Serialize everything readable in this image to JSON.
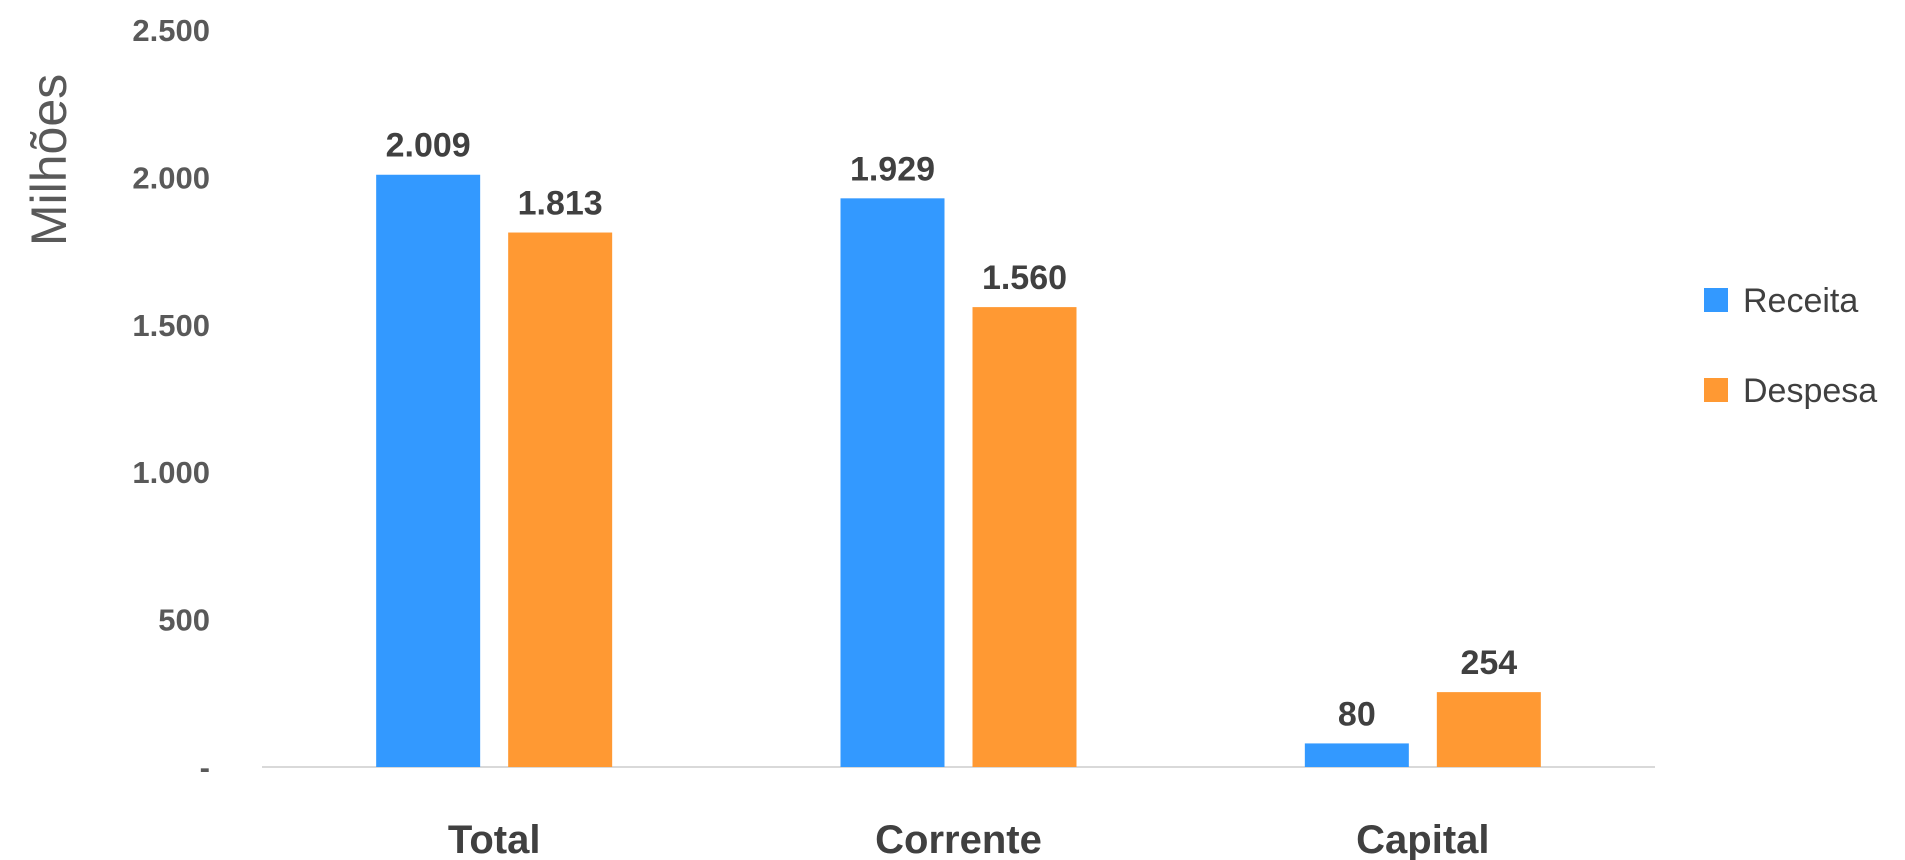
{
  "chart_data": {
    "type": "bar",
    "title": "",
    "xlabel": "",
    "ylabel": "Milhões",
    "categories": [
      "Total",
      "Corrente",
      "Capital"
    ],
    "series": [
      {
        "name": "Receita",
        "color": "#3399FF",
        "values": [
          2009,
          1929,
          80
        ],
        "labels": [
          "2.009",
          "1.929",
          "80"
        ]
      },
      {
        "name": "Despesa",
        "color": "#FF9933",
        "values": [
          1813,
          1560,
          254
        ],
        "labels": [
          "1.813",
          "1.560",
          "254"
        ]
      }
    ],
    "ylim": [
      0,
      2500
    ],
    "yticks": [
      0,
      500,
      1000,
      1500,
      2000,
      2500
    ],
    "ytick_labels": [
      "-",
      "500",
      "1.000",
      "1.500",
      "2.000",
      "2.500"
    ],
    "grid": false,
    "legend_position": "right"
  }
}
